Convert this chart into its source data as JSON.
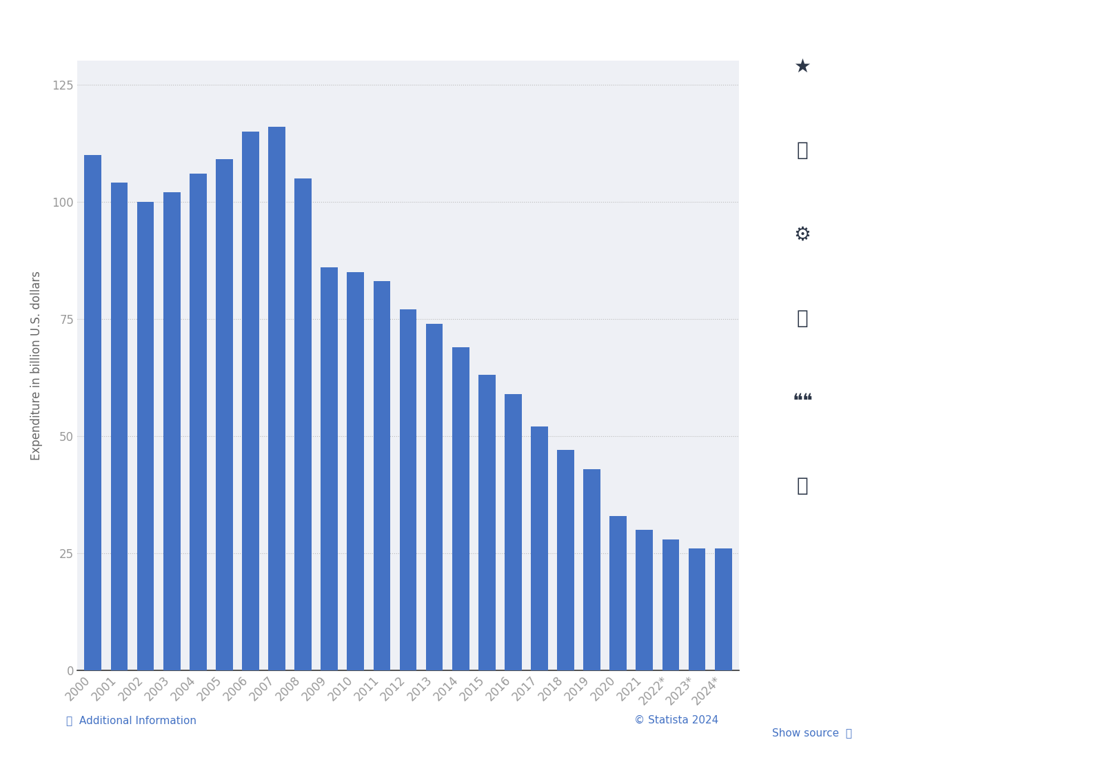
{
  "categories": [
    "2000",
    "2001",
    "2002",
    "2003",
    "2004",
    "2005",
    "2006",
    "2007",
    "2008",
    "2009",
    "2010",
    "2011",
    "2012",
    "2013",
    "2014",
    "2015",
    "2016",
    "2017",
    "2018",
    "2019",
    "2020",
    "2021",
    "2022*",
    "2023*",
    "2024*"
  ],
  "values": [
    110,
    104,
    100,
    102,
    106,
    109,
    115,
    116,
    105,
    86,
    85,
    83,
    77,
    74,
    69,
    63,
    59,
    52,
    47,
    43,
    33,
    30,
    28,
    26,
    26
  ],
  "bar_color": "#4472c4",
  "ylabel": "Expenditure in billion U.S. dollars",
  "ylim": [
    0,
    130
  ],
  "yticks": [
    0,
    25,
    50,
    75,
    100,
    125
  ],
  "fig_background_color": "#ffffff",
  "plot_bg_color": "#eef0f5",
  "right_panel_color": "#f0f2f5",
  "grid_color": "#bbbbbb",
  "tick_label_color": "#999999",
  "ylabel_color": "#666666",
  "bar_width": 0.65,
  "footer_text_color": "#4472c4",
  "icon_panel_bg": "#e8eaed"
}
